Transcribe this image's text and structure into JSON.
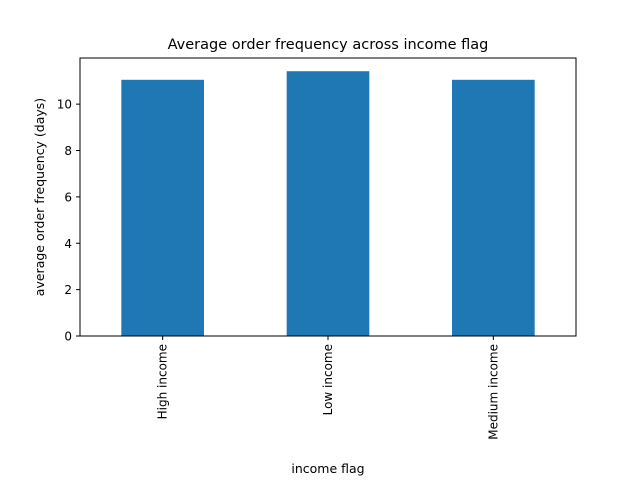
{
  "chart_data": {
    "type": "bar",
    "title": "Average order frequency across income flag",
    "xlabel": "income flag",
    "ylabel": "average order frequency (days)",
    "categories": [
      "High income",
      "Low income",
      "Medium income"
    ],
    "values": [
      11.05,
      11.42,
      11.05
    ],
    "ylim": [
      0,
      11.99
    ],
    "yticks": [
      0,
      2,
      4,
      6,
      8,
      10
    ],
    "bar_color": "#1f77b4",
    "grid": false,
    "legend": "none"
  }
}
